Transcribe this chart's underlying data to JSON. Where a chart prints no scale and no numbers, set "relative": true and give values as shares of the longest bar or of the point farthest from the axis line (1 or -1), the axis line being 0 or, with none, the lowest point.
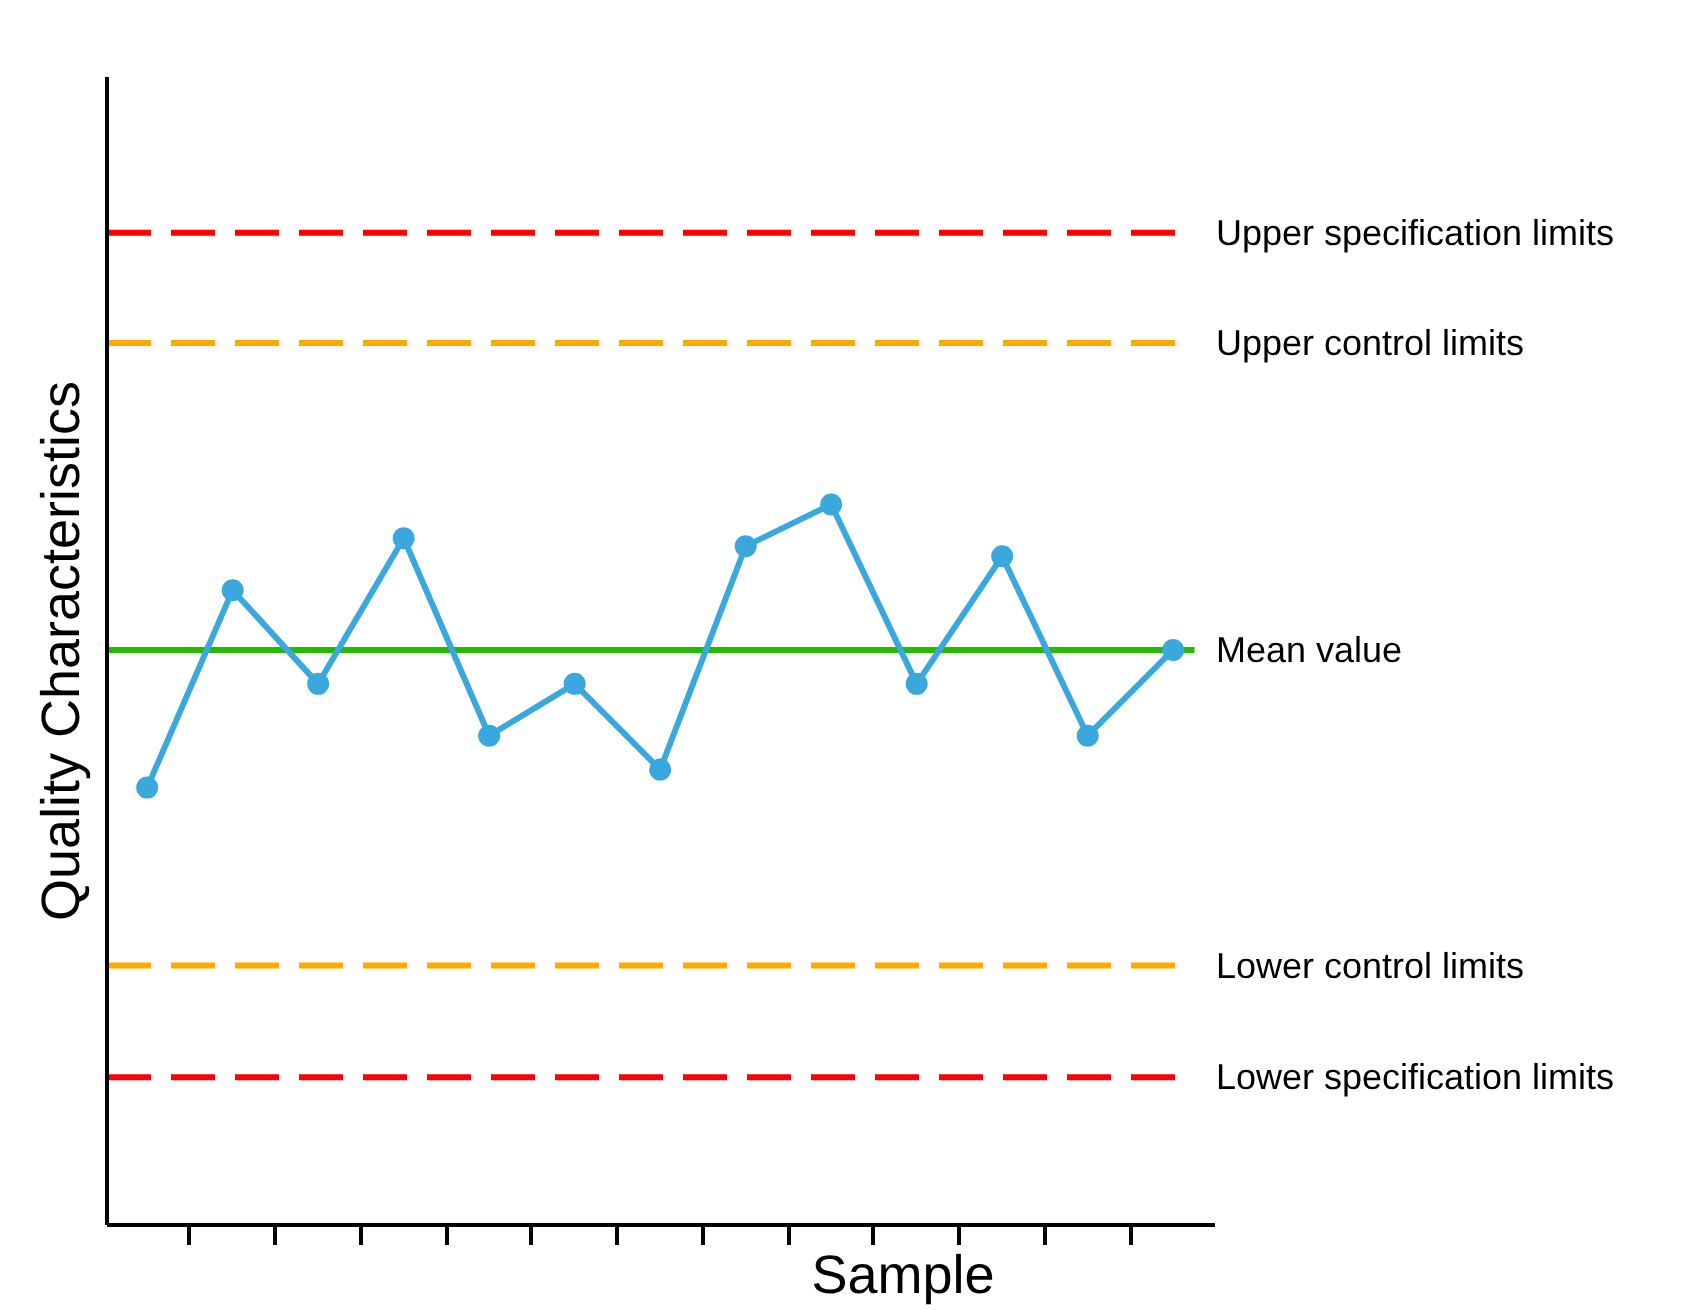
{
  "chart_data": {
    "type": "line",
    "relative": true,
    "xlabel": "Sample",
    "ylabel": "Quality Characteristics",
    "categories": [
      null,
      null,
      null,
      null,
      null,
      null,
      null,
      null,
      null,
      null,
      null,
      null,
      null
    ],
    "series": [
      {
        "color": "#3aa8dc",
        "values": [
          0.607,
          0.881,
          0.751,
          0.953,
          0.679,
          0.751,
          0.632,
          0.942,
          1,
          0.751,
          0.928,
          0.679,
          0.798
        ]
      }
    ],
    "ref_lines": [
      {
        "axis": "y",
        "value": 1.377,
        "label": "Upper specification limits",
        "color": "#ff0000",
        "line_style": "dashed"
      },
      {
        "axis": "y",
        "value": 1.224,
        "label": "Upper control limits",
        "color": "#ffaa00",
        "line_style": "dashed"
      },
      {
        "axis": "y",
        "value": 0.798,
        "label": "Mean value",
        "color": "#22bb00",
        "line_style": "solid"
      },
      {
        "axis": "y",
        "value": 0.36,
        "label": "Lower control limits",
        "color": "#ffaa00",
        "line_style": "dashed"
      },
      {
        "axis": "y",
        "value": 0.205,
        "label": "Lower specification limits",
        "color": "#ff0000",
        "line_style": "dashed"
      }
    ],
    "grid": false,
    "marker": "circle",
    "line_style": "solid"
  }
}
